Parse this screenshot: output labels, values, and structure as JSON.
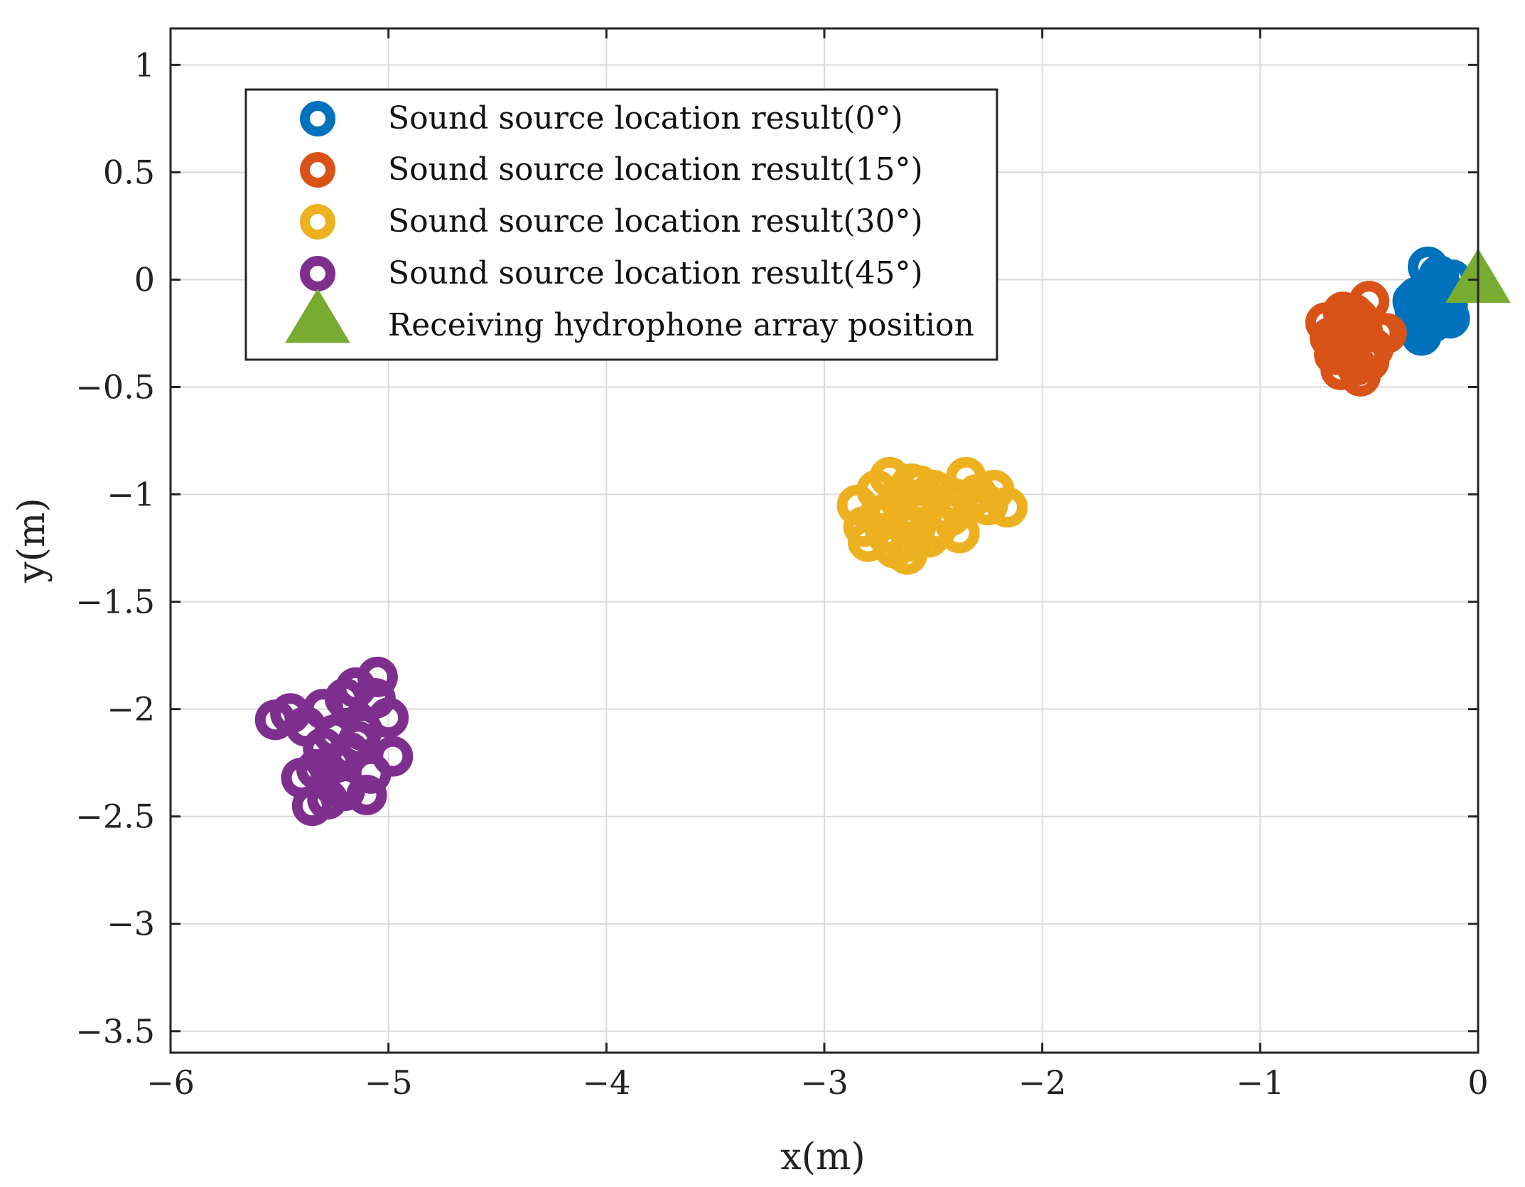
{
  "chart_data": {
    "type": "scatter",
    "title": "",
    "xlabel": "x(m)",
    "ylabel": "y(m)",
    "xlim": [
      -6,
      0
    ],
    "ylim": [
      -3.6,
      1.17
    ],
    "grid": true,
    "xticks": [
      -6,
      -5,
      -4,
      -3,
      -2,
      -1,
      0
    ],
    "yticks": [
      1,
      0.5,
      0,
      -0.5,
      -1,
      -1.5,
      -2,
      -2.5,
      -3,
      -3.5
    ],
    "xtick_labels": [
      "−6",
      "−5",
      "−4",
      "−3",
      "−2",
      "−1",
      "0"
    ],
    "ytick_labels": [
      "1",
      "0.5",
      "0",
      "−0.5",
      "−1",
      "−1.5",
      "−2",
      "−2.5",
      "−3",
      "−3.5"
    ],
    "legend_position": "top-left",
    "series": [
      {
        "name": "Sound source location result(0°)",
        "color": "#0072BD",
        "marker": "circle",
        "x": [
          -0.23,
          -0.18,
          -0.12,
          -0.28,
          -0.22,
          -0.15,
          -0.3,
          -0.25,
          -0.2,
          -0.13,
          -0.27,
          -0.21,
          -0.16,
          -0.26,
          -0.19,
          -0.14,
          -0.24,
          -0.29,
          -0.17,
          -0.22
        ],
        "y": [
          0.06,
          0.02,
          0.0,
          -0.08,
          -0.04,
          -0.06,
          -0.1,
          -0.12,
          -0.14,
          -0.18,
          -0.16,
          -0.2,
          -0.08,
          -0.26,
          -0.02,
          -0.12,
          -0.22,
          -0.14,
          -0.18,
          -0.1
        ]
      },
      {
        "name": "Sound source location result(15°)",
        "color": "#D95319",
        "marker": "circle",
        "x": [
          -0.5,
          -0.62,
          -0.7,
          -0.55,
          -0.45,
          -0.65,
          -0.58,
          -0.48,
          -0.6,
          -0.52,
          -0.68,
          -0.56,
          -0.63,
          -0.54,
          -0.42,
          -0.66,
          -0.5,
          -0.57,
          -0.61,
          -0.53
        ],
        "y": [
          -0.1,
          -0.15,
          -0.2,
          -0.18,
          -0.25,
          -0.28,
          -0.3,
          -0.32,
          -0.22,
          -0.36,
          -0.27,
          -0.4,
          -0.42,
          -0.45,
          -0.25,
          -0.35,
          -0.38,
          -0.16,
          -0.33,
          -0.24
        ]
      },
      {
        "name": "Sound source location result(30°)",
        "color": "#EDB120",
        "marker": "circle",
        "x": [
          -2.7,
          -2.6,
          -2.85,
          -2.75,
          -2.65,
          -2.55,
          -2.5,
          -2.45,
          -2.4,
          -2.35,
          -2.3,
          -2.25,
          -2.22,
          -2.16,
          -2.8,
          -2.72,
          -2.62,
          -2.58,
          -2.68,
          -2.52,
          -2.76,
          -2.64,
          -2.48,
          -2.38,
          -2.7,
          -2.82,
          -2.56,
          -2.6,
          -2.42,
          -2.66
        ],
        "y": [
          -0.92,
          -0.95,
          -1.05,
          -1.1,
          -1.0,
          -1.05,
          -0.98,
          -1.08,
          -1.02,
          -0.92,
          -1.0,
          -1.05,
          -0.98,
          -1.06,
          -1.22,
          -1.18,
          -1.28,
          -1.15,
          -1.25,
          -1.2,
          -0.98,
          -1.12,
          -1.15,
          -1.18,
          -1.08,
          -1.15,
          -0.96,
          -1.22,
          -1.1,
          -1.02
        ]
      },
      {
        "name": "Sound source location result(45°)",
        "color": "#7E2F8E",
        "marker": "circle",
        "x": [
          -5.05,
          -5.15,
          -5.2,
          -5.3,
          -5.45,
          -5.52,
          -5.38,
          -5.25,
          -5.12,
          -5.0,
          -4.98,
          -5.33,
          -5.4,
          -5.22,
          -5.08,
          -5.1,
          -5.2,
          -5.28,
          -5.18,
          -5.35,
          -5.06,
          -5.14,
          -5.24,
          -5.3
        ],
        "y": [
          -1.85,
          -1.9,
          -1.95,
          -2.0,
          -2.02,
          -2.05,
          -2.08,
          -2.12,
          -2.1,
          -2.04,
          -2.22,
          -2.28,
          -2.32,
          -2.35,
          -2.3,
          -2.4,
          -2.38,
          -2.42,
          -2.2,
          -2.45,
          -1.95,
          -2.15,
          -2.25,
          -2.18
        ]
      },
      {
        "name": "Receiving hydrophone array position",
        "color": "#77AC30",
        "marker": "triangle",
        "x": [
          0
        ],
        "y": [
          0
        ]
      }
    ]
  }
}
